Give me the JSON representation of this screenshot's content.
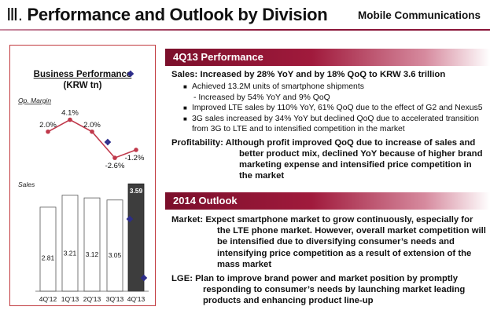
{
  "header": {
    "roman": "Ⅲ.",
    "title": "Performance and Outlook by Division",
    "division": "Mobile Communications"
  },
  "chart": {
    "title_line1": "Business Performance",
    "title_line2": "(KRW tn)",
    "margin_label": "Op. Margin",
    "sales_label": "Sales"
  },
  "chart_data": {
    "type": "bar",
    "categories": [
      "4Q'12",
      "1Q'13",
      "2Q'13",
      "3Q'13",
      "4Q'13"
    ],
    "series": [
      {
        "name": "Sales",
        "values": [
          2.81,
          3.21,
          3.12,
          3.05,
          3.59
        ]
      },
      {
        "name": "Op. Margin",
        "values": [
          2.0,
          4.1,
          2.0,
          -2.6,
          -1.2
        ]
      }
    ],
    "value_labels": [
      "2.81",
      "3.21",
      "3.12",
      "3.05",
      "3.59"
    ],
    "margin_labels": [
      "2.0%",
      "4.1%",
      "2.0%",
      "-2.6%",
      "-1.2%"
    ],
    "highlight_index": 4,
    "colors": {
      "bar": "#ffffff",
      "bar_highlight": "#3d3d3d",
      "line": "#c0394b",
      "border": "#c1393e"
    },
    "title": "Business Performance",
    "ylabel": "(KRW tn)"
  },
  "perf": {
    "band": "4Q13 Performance",
    "sales_head": "Sales:",
    "sales_text": "Increased by 28% YoY and by 18% QoQ to KRW 3.6 trillion",
    "subs": [
      "Achieved 13.2M units of smartphone shipments",
      "Improved LTE sales by 110% YoY, 61% QoQ due to the effect of G2 and Nexus5",
      "3G sales increased by 34% YoY but declined QoQ due to accelerated transition from 3G to LTE and to intensified competition in the market"
    ],
    "sub_dash": "- Increased by 54% YoY and 9% QoQ",
    "profit_head": "Profitability:",
    "profit_text": "Although profit improved QoQ due to increase of sales and better product mix, declined YoY because of higher brand marketing expense and intensified price competition in the market"
  },
  "outlook": {
    "band": "2014 Outlook",
    "market_head": "Market:",
    "market_text": "Expect smartphone market to grow continuously, especially for the LTE phone market. However, overall market competition will be intensified due to diversifying consumer’s needs and intensifying price competition as a result of extension of the mass market",
    "lge_head": "LGE:",
    "lge_text": "Plan to improve brand power and market position by promptly responding to consumer’s needs by launching market leading products and enhancing product line-up"
  },
  "bullet_symbol": "❖",
  "sub_symbol": "■"
}
